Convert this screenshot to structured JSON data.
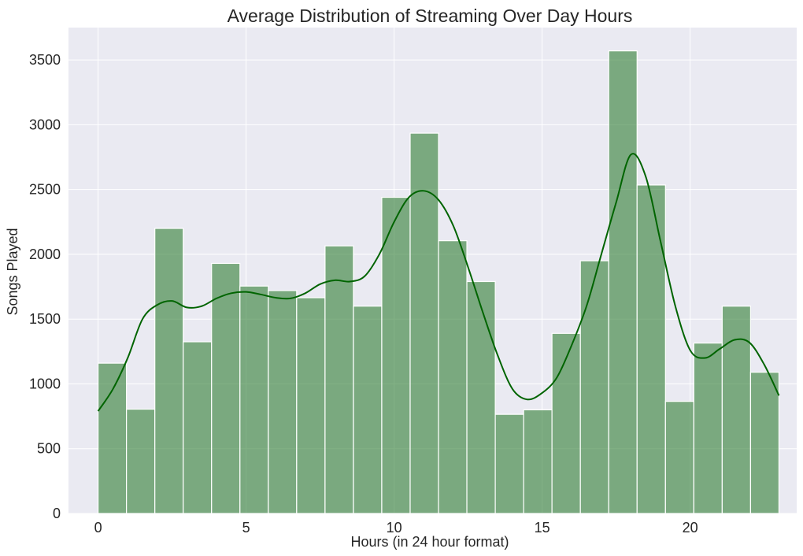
{
  "chart_data": {
    "type": "bar",
    "title": "Average Distribution of Streaming Over Day Hours",
    "xlabel": "Hours (in 24 hour format)",
    "ylabel": "Songs Played",
    "xlim": [
      -1,
      23.6
    ],
    "ylim": [
      0,
      3750
    ],
    "xticks": [
      0,
      5,
      10,
      15,
      20
    ],
    "yticks": [
      0,
      500,
      1000,
      1500,
      2000,
      2500,
      3000,
      3500
    ],
    "grid": true,
    "bin_edges": [
      0,
      0.958,
      1.917,
      2.875,
      3.833,
      4.792,
      5.75,
      6.708,
      7.667,
      8.625,
      9.583,
      10.542,
      11.5,
      12.458,
      13.417,
      14.375,
      15.333,
      16.292,
      17.25,
      18.208,
      19.167,
      20.125,
      21.083,
      22.042,
      23
    ],
    "values": [
      1160,
      805,
      2200,
      1325,
      1930,
      1755,
      1720,
      1665,
      2065,
      1600,
      2440,
      2935,
      2105,
      1790,
      765,
      800,
      1390,
      1950,
      3570,
      2535,
      865,
      1315,
      1600,
      1090
    ],
    "kde": {
      "x": [
        0,
        0.5,
        1,
        1.5,
        2,
        2.5,
        3,
        3.5,
        4,
        4.5,
        5,
        5.5,
        6,
        6.5,
        7,
        7.5,
        8,
        8.5,
        9,
        9.5,
        10,
        10.5,
        11,
        11.5,
        12,
        12.5,
        13,
        13.5,
        14,
        14.5,
        15,
        15.5,
        16,
        16.5,
        17,
        17.5,
        18,
        18.5,
        19,
        19.5,
        20,
        20.5,
        21,
        21.5,
        22,
        22.5,
        23
      ],
      "y": [
        790,
        960,
        1200,
        1500,
        1610,
        1640,
        1590,
        1600,
        1660,
        1700,
        1710,
        1690,
        1665,
        1660,
        1700,
        1770,
        1800,
        1790,
        1830,
        2000,
        2250,
        2440,
        2490,
        2420,
        2220,
        1900,
        1550,
        1220,
        960,
        880,
        930,
        1050,
        1300,
        1600,
        2000,
        2400,
        2770,
        2600,
        2100,
        1600,
        1260,
        1200,
        1270,
        1340,
        1320,
        1150,
        910
      ]
    },
    "bar_color": "#2e7d32",
    "bar_opacity": 0.6,
    "line_color": "#006400",
    "background_color": "#eaeaf2",
    "grid_color": "#ffffff"
  }
}
